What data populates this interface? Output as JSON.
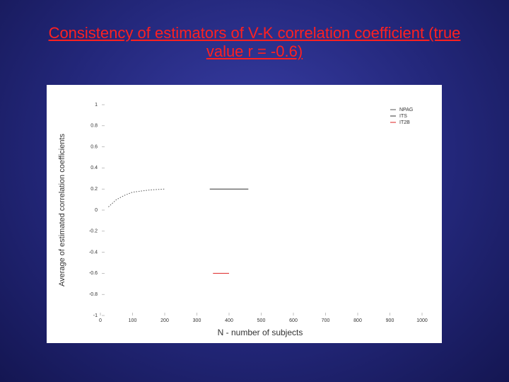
{
  "chart_data": {
    "type": "line",
    "title": "Consistency of estimators of V-K correlation coefficient  (true value r = -0.6)",
    "x_label": "N - number of subjects",
    "y_label": "Average of estimated correlation coefficients",
    "xlim": [
      0,
      1000
    ],
    "xticks": [
      0,
      100,
      200,
      300,
      400,
      500,
      600,
      700,
      800,
      900,
      1000
    ],
    "ylim": [
      -1,
      1
    ],
    "yticks": [
      1,
      0.8,
      0.6,
      0.4,
      0.2,
      0,
      -0.2,
      -0.4,
      -0.6,
      -0.8,
      -1
    ],
    "legend": "top-right",
    "series": [
      {
        "name": "NPAG",
        "color": "#555555",
        "x": [
          25,
          50,
          75,
          100,
          150,
          200
        ],
        "values": [
          0.03,
          0.1,
          0.14,
          0.17,
          0.19,
          0.2
        ]
      },
      {
        "name": "ITS",
        "color": "#333333",
        "x": [
          340,
          460
        ],
        "values": [
          0.2,
          0.2
        ]
      },
      {
        "name": "IT2B",
        "color": "#dd2222",
        "x": [
          350,
          400
        ],
        "values": [
          -0.6,
          -0.6
        ]
      }
    ]
  }
}
